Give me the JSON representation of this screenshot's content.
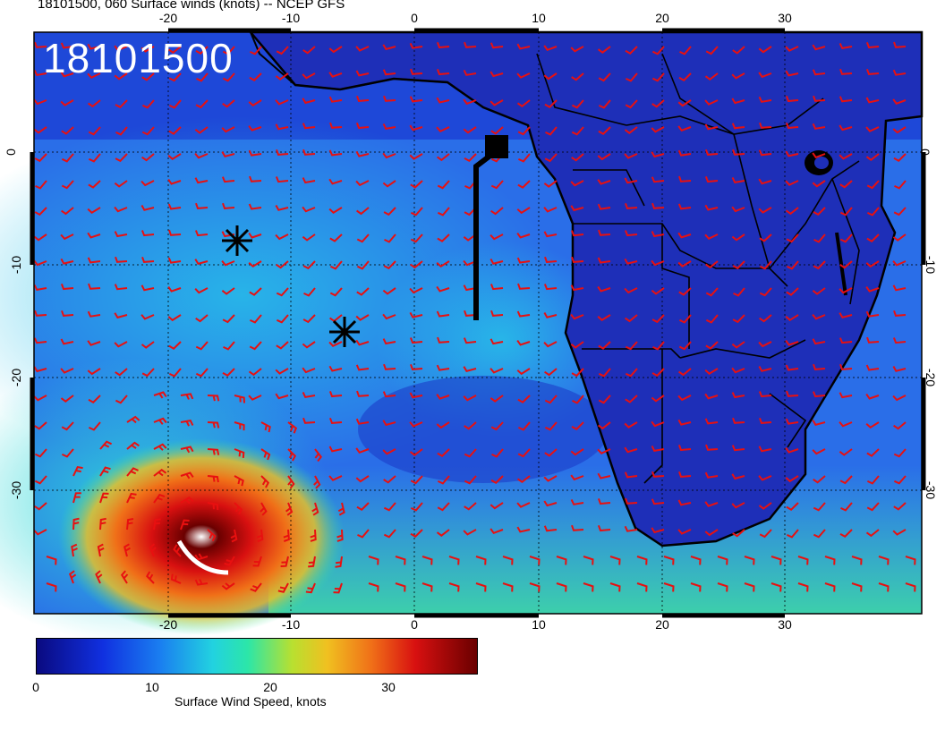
{
  "header": {
    "title": "18101500, 060 Surface winds (knots) -- NCEP GFS"
  },
  "map": {
    "stamp": "18101500",
    "lon_ticks": [
      "-20",
      "-10",
      "0",
      "10",
      "20",
      "30"
    ],
    "lat_ticks": [
      "0",
      "-10",
      "-20",
      "-30"
    ],
    "colors": {
      "ocean_low": "#1a3fd0",
      "ocean_mid": "#2a8ef0",
      "land": "#1e2fb8",
      "barbs": "#e81010",
      "coast": "#000000",
      "storm_core": "#d81010"
    }
  },
  "colorbar": {
    "labels": [
      "0",
      "10",
      "20",
      "30"
    ],
    "title": "Surface Wind Speed, knots"
  },
  "markers": [
    {
      "name": "asterisk-marker-north"
    },
    {
      "name": "asterisk-marker-south"
    },
    {
      "name": "square-marker"
    }
  ]
}
